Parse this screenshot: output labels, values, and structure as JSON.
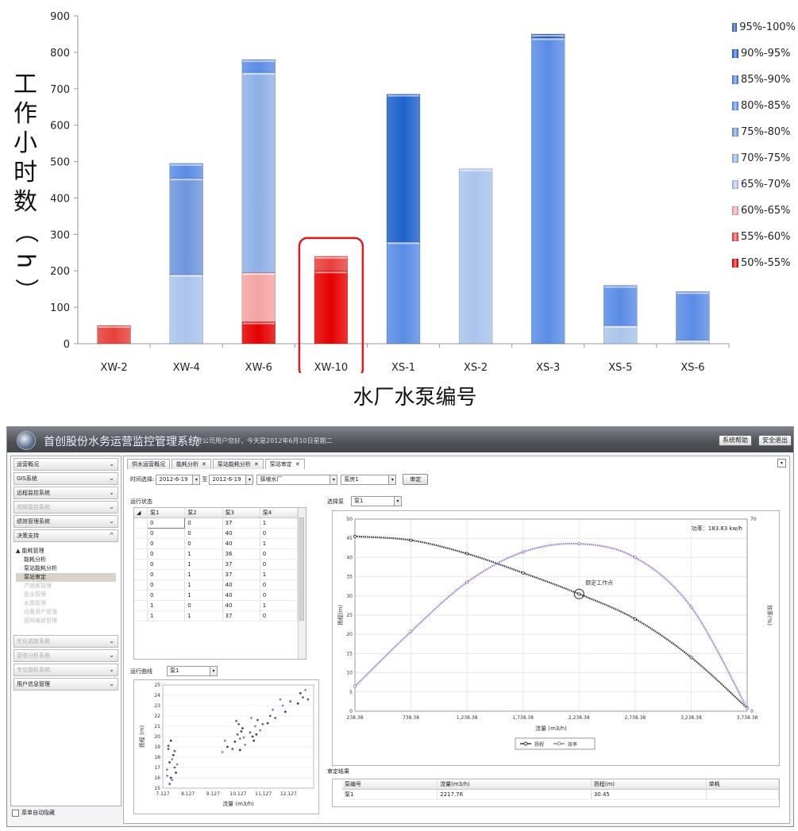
{
  "chart_data": [
    {
      "type": "bar",
      "stacked": true,
      "title": "",
      "ylabel": "工作小时数（h）",
      "xlabel": "水厂水泵编号",
      "ylim": [
        0,
        900
      ],
      "yticks": [
        0,
        100,
        200,
        300,
        400,
        500,
        600,
        700,
        800,
        900
      ],
      "categories": [
        "XW-2",
        "XW-4",
        "XW-6",
        "XW-10",
        "XS-1",
        "XS-2",
        "XS-3",
        "XS-5",
        "XS-6"
      ],
      "legend_position": "right",
      "highlight_category": "XW-10",
      "highlight_color": "#e01a1a",
      "series": [
        {
          "name": "50%-55%",
          "color": "#e60000",
          "values": [
            0,
            0,
            60,
            200,
            0,
            0,
            0,
            0,
            0
          ]
        },
        {
          "name": "55%-60%",
          "color": "#e8403c",
          "values": [
            50,
            0,
            0,
            40,
            0,
            0,
            0,
            0,
            0
          ]
        },
        {
          "name": "60%-65%",
          "color": "#f4a4a4",
          "values": [
            0,
            0,
            135,
            0,
            0,
            0,
            0,
            0,
            0
          ]
        },
        {
          "name": "65%-70%",
          "color": "#a9c4ec",
          "values": [
            0,
            190,
            0,
            0,
            0,
            480,
            0,
            50,
            10
          ]
        },
        {
          "name": "70%-75%",
          "color": "#8fb0e6",
          "values": [
            0,
            0,
            550,
            0,
            0,
            0,
            0,
            0,
            0
          ]
        },
        {
          "name": "75%-80%",
          "color": "#6e96dc",
          "values": [
            0,
            265,
            0,
            0,
            0,
            0,
            0,
            0,
            0
          ]
        },
        {
          "name": "80%-85%",
          "color": "#5a8ce6",
          "values": [
            0,
            40,
            35,
            0,
            280,
            0,
            840,
            110,
            133
          ]
        },
        {
          "name": "85%-90%",
          "color": "#4a7ed8",
          "values": [
            0,
            0,
            0,
            0,
            0,
            0,
            0,
            0,
            0
          ]
        },
        {
          "name": "90%-95%",
          "color": "#1f62cc",
          "values": [
            0,
            0,
            0,
            0,
            405,
            0,
            0,
            0,
            0
          ]
        },
        {
          "name": "95%-100%",
          "color": "#2c5fb8",
          "values": [
            0,
            0,
            0,
            0,
            0,
            0,
            10,
            0,
            0
          ]
        }
      ]
    },
    {
      "type": "line",
      "title": "",
      "xlabel": "流量 (m3/h)",
      "ylabel": "扬程(m)",
      "y2label": "效率(%)",
      "xticks": [
        "238.38",
        "738.38",
        "1,238.38",
        "1,738.38",
        "2,238.38",
        "2,738.38",
        "3,238.38",
        "3,738.38"
      ],
      "xlim": [
        238.38,
        3738.38
      ],
      "ylim": [
        0,
        50
      ],
      "yticks": [
        0,
        5,
        10,
        15,
        20,
        25,
        30,
        35,
        40,
        45,
        50
      ],
      "y2lim": [
        0,
        70
      ],
      "y2ticks": [
        0,
        70
      ],
      "power_text": "功率：183.83 kw/h",
      "annotation": "额定工作点",
      "series": [
        {
          "name": "扬程",
          "color": "#2f3a30",
          "x": [
            238.38,
            738.38,
            1238.38,
            1738.38,
            2238.38,
            2738.38,
            3238.38,
            3738.38
          ],
          "values": [
            45.5,
            44.5,
            41,
            36,
            30.5,
            24,
            14,
            0.8
          ]
        },
        {
          "name": "效率",
          "color": "#9d77c6",
          "axis": "y2",
          "x": [
            238.38,
            738.38,
            1238.38,
            1738.38,
            2238.38,
            2738.38,
            3238.38,
            3738.38
          ],
          "values": [
            9,
            29,
            47,
            58,
            61,
            56,
            38,
            1
          ]
        }
      ]
    },
    {
      "type": "scatter",
      "title": "",
      "xlabel": "流量 (m3/h)",
      "ylabel": "扬程 (m)",
      "xticks": [
        "7.127",
        "8.127",
        "9.127",
        "10.127",
        "11.127",
        "12.127"
      ],
      "xlim": [
        7.127,
        13.127
      ],
      "ylim": [
        15,
        25
      ],
      "yticks": [
        15,
        16,
        17,
        18,
        19,
        20,
        21,
        22,
        23,
        24,
        25
      ],
      "points": [
        {
          "x": 7.3,
          "y": 16.2
        },
        {
          "x": 7.4,
          "y": 17.5
        },
        {
          "x": 7.35,
          "y": 18.8
        },
        {
          "x": 7.5,
          "y": 15.8
        },
        {
          "x": 7.45,
          "y": 19.6
        },
        {
          "x": 7.6,
          "y": 17.0
        },
        {
          "x": 7.3,
          "y": 16.8
        },
        {
          "x": 7.55,
          "y": 18.2
        },
        {
          "x": 7.4,
          "y": 15.4
        },
        {
          "x": 7.5,
          "y": 17.8
        },
        {
          "x": 7.65,
          "y": 16.5
        },
        {
          "x": 7.35,
          "y": 19.1
        },
        {
          "x": 7.7,
          "y": 17.3
        },
        {
          "x": 7.45,
          "y": 16.0
        },
        {
          "x": 7.6,
          "y": 18.6
        },
        {
          "x": 9.5,
          "y": 18.5
        },
        {
          "x": 9.7,
          "y": 19.0
        },
        {
          "x": 9.9,
          "y": 18.8
        },
        {
          "x": 9.6,
          "y": 19.6
        },
        {
          "x": 10.0,
          "y": 19.5
        },
        {
          "x": 10.1,
          "y": 20.2
        },
        {
          "x": 10.2,
          "y": 19.8
        },
        {
          "x": 10.3,
          "y": 20.8
        },
        {
          "x": 10.15,
          "y": 21.2
        },
        {
          "x": 10.4,
          "y": 19.2
        },
        {
          "x": 10.25,
          "y": 20.5
        },
        {
          "x": 10.05,
          "y": 21.5
        },
        {
          "x": 10.35,
          "y": 19.9
        },
        {
          "x": 10.2,
          "y": 18.7
        },
        {
          "x": 10.6,
          "y": 20.4
        },
        {
          "x": 10.8,
          "y": 21.0
        },
        {
          "x": 10.7,
          "y": 20.0
        },
        {
          "x": 10.9,
          "y": 21.6
        },
        {
          "x": 11.0,
          "y": 20.6
        },
        {
          "x": 10.75,
          "y": 19.6
        },
        {
          "x": 11.1,
          "y": 21.2
        },
        {
          "x": 10.65,
          "y": 21.8
        },
        {
          "x": 10.85,
          "y": 20.2
        },
        {
          "x": 11.4,
          "y": 22.0
        },
        {
          "x": 11.5,
          "y": 22.6
        },
        {
          "x": 11.3,
          "y": 21.3
        },
        {
          "x": 11.6,
          "y": 21.8
        },
        {
          "x": 11.9,
          "y": 23.0
        },
        {
          "x": 12.0,
          "y": 22.4
        },
        {
          "x": 12.2,
          "y": 23.4
        },
        {
          "x": 11.8,
          "y": 23.6
        },
        {
          "x": 12.6,
          "y": 24.2
        },
        {
          "x": 12.7,
          "y": 23.8
        },
        {
          "x": 12.8,
          "y": 24.5
        },
        {
          "x": 12.5,
          "y": 23.2
        },
        {
          "x": 12.9,
          "y": 23.6
        }
      ]
    }
  ],
  "app": {
    "title": "首创股份水务运营监控管理系统",
    "welcome": "登公司用户您好，今天是2012年6月10日星期二",
    "header_buttons": [
      "系统帮助",
      "安全退出"
    ],
    "sidebar_sections": [
      {
        "label": "运营概况",
        "dim": false,
        "chev": "⌄"
      },
      {
        "label": "GIS系统",
        "dim": false,
        "chev": "⌄"
      },
      {
        "label": "远程监控系统",
        "dim": false,
        "chev": "⌄"
      },
      {
        "label": "视频监控系统",
        "dim": true,
        "chev": "⌄"
      },
      {
        "label": "绩效管理系统",
        "dim": false,
        "chev": "⌄"
      },
      {
        "label": "决策支持",
        "dim": false,
        "chev": "^"
      }
    ],
    "tree_root": "▲ 能耗管理",
    "tree_items": [
      "能耗分析",
      "泵站能耗分析",
      "泵站审定"
    ],
    "tree_dim_items": [
      "产销差管理",
      "管水管理",
      "水质管理",
      "设备资产管理",
      "管网维修管理"
    ],
    "sidebar_sections_bottom": [
      {
        "label": "优化调度系统",
        "dim": true,
        "chev": "⌄"
      },
      {
        "label": "营收分析系统",
        "dim": true,
        "chev": "⌄"
      },
      {
        "label": "专业指标系统",
        "dim": true,
        "chev": "⌄"
      },
      {
        "label": "用户信息管理",
        "dim": false,
        "chev": "⌄"
      }
    ],
    "auto_hide": "菜单自动隐藏",
    "tabs": [
      {
        "label": "供水运营概况",
        "closable": false
      },
      {
        "label": "能耗分析",
        "closable": true
      },
      {
        "label": "泵站能耗分析",
        "closable": true
      },
      {
        "label": "泵站审定",
        "closable": true
      }
    ],
    "time_label": "时间选择:",
    "date_from": "2012-6-19",
    "date_to_label": "至",
    "date_to": "2012-6-19",
    "plant": "驿坡水厂",
    "pump_room": "泵房1",
    "confirm_label": "审定",
    "run_status_label": "运行状态",
    "grid_headers": [
      "泵1",
      "泵2",
      "泵3",
      "泵4"
    ],
    "grid_rows": [
      [
        "0",
        "0",
        "37",
        "1"
      ],
      [
        "0",
        "0",
        "40",
        "0"
      ],
      [
        "0",
        "0",
        "40",
        "1"
      ],
      [
        "0",
        "1",
        "36",
        "0"
      ],
      [
        "0",
        "1",
        "37",
        "0"
      ],
      [
        "0",
        "1",
        "37",
        "1"
      ],
      [
        "0",
        "1",
        "40",
        "0"
      ],
      [
        "0",
        "1",
        "40",
        "0"
      ],
      [
        "1",
        "0",
        "40",
        "1"
      ],
      [
        "1",
        "1",
        "37",
        "0"
      ]
    ],
    "run_curve_label": "运行曲线",
    "run_curve_pump": "泵1",
    "select_pump_label": "选择泵",
    "select_pump": "泵1",
    "legend_head": "扬程",
    "legend_eff": "效率",
    "result_label": "审定结果",
    "result_headers": [
      "泵编号",
      "流量(m3/h)",
      "扬程(m)",
      "单耗"
    ],
    "result_row": [
      "泵1",
      "2217.76",
      "30.45",
      ""
    ]
  }
}
